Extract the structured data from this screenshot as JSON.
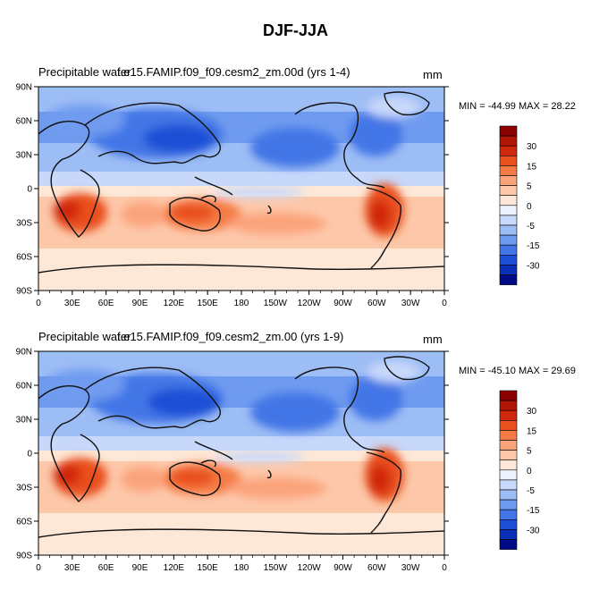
{
  "figure": {
    "title": "DJF-JJA"
  },
  "chart_data": [
    {
      "type": "heatmap",
      "title": "Precipitable water",
      "subtitle": "f.e15.FAMIP.f09_f09.cesm2_zm.00d (yrs 1-4)",
      "units": "mm",
      "min_label": "MIN = -44.99",
      "max_label": "MAX =  28.22",
      "x_ticks": [
        "0",
        "30E",
        "60E",
        "90E",
        "120E",
        "150E",
        "180",
        "150W",
        "120W",
        "90W",
        "60W",
        "30W",
        "0"
      ],
      "y_ticks": [
        "90N",
        "60N",
        "30N",
        "0",
        "30S",
        "60S",
        "90S"
      ],
      "xlim": [
        0,
        360
      ],
      "ylim": [
        -90,
        90
      ],
      "colorbar_labels": [
        "30",
        "15",
        "5",
        "0",
        "-5",
        "-15",
        "-30"
      ]
    },
    {
      "type": "heatmap",
      "title": "Precipitable water",
      "subtitle": "f.e15.FAMIP.f09_f09.cesm2_zm.00 (yrs 1-9)",
      "units": "mm",
      "min_label": "MIN = -45.10",
      "max_label": "MAX =  29.69",
      "x_ticks": [
        "0",
        "30E",
        "60E",
        "90E",
        "120E",
        "150E",
        "180",
        "150W",
        "120W",
        "90W",
        "60W",
        "30W",
        "0"
      ],
      "y_ticks": [
        "90N",
        "60N",
        "30N",
        "0",
        "30S",
        "60S",
        "90S"
      ],
      "xlim": [
        0,
        360
      ],
      "ylim": [
        -90,
        90
      ],
      "colorbar_labels": [
        "30",
        "15",
        "5",
        "0",
        "-5",
        "-15",
        "-30"
      ]
    }
  ],
  "colorbar_colors": [
    "#8b0000",
    "#b01508",
    "#d0280c",
    "#e8501e",
    "#f57b45",
    "#fba37a",
    "#fdc8aa",
    "#fde7d6",
    "#eef3ff",
    "#c7d8fa",
    "#9dbdf5",
    "#6f9bef",
    "#4276e6",
    "#1f4fd6",
    "#0b2fb5",
    "#000b85"
  ]
}
